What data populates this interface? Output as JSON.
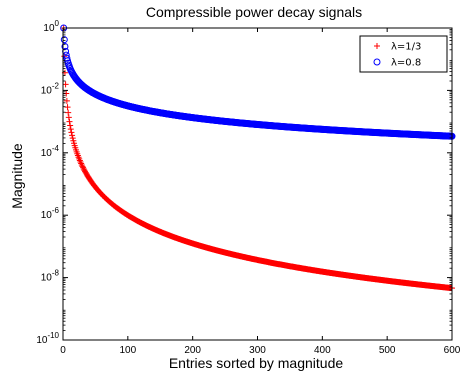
{
  "chart_data": {
    "type": "scatter",
    "title": "Compressible power decay signals",
    "xlabel": "Entries sorted by magnitude",
    "ylabel": "Magnitude",
    "xlim": [
      0,
      600
    ],
    "ylim": [
      1e-10,
      1
    ],
    "yscale": "log",
    "grid": false,
    "legend_position": "top-right",
    "xticks": [
      0,
      100,
      200,
      300,
      400,
      500,
      600
    ],
    "xtick_labels": [
      "0",
      "100",
      "200",
      "300",
      "400",
      "500",
      "600"
    ],
    "yticks": [
      1e-10,
      1e-08,
      1e-06,
      0.0001,
      0.01,
      1
    ],
    "ytick_labels": [
      {
        "base": "10",
        "exp": "-10"
      },
      {
        "base": "10",
        "exp": "-8"
      },
      {
        "base": "10",
        "exp": "-6"
      },
      {
        "base": "10",
        "exp": "-4"
      },
      {
        "base": "10",
        "exp": "-2"
      },
      {
        "base": "10",
        "exp": "0"
      }
    ],
    "series": [
      {
        "name": "λ=1/3",
        "marker": "plus",
        "color": "#ff0000",
        "decay_exponent": 3,
        "n_points": 600,
        "x_start": 1,
        "x_end": 600,
        "y_at_x1": 1,
        "y_at_x600": 4.6e-09
      },
      {
        "name": "λ=0.8",
        "marker": "circle",
        "color": "#0000ff",
        "decay_exponent": 1.25,
        "n_points": 600,
        "x_start": 1,
        "x_end": 600,
        "y_at_x1": 1,
        "y_at_x600": 0.00034
      }
    ]
  }
}
